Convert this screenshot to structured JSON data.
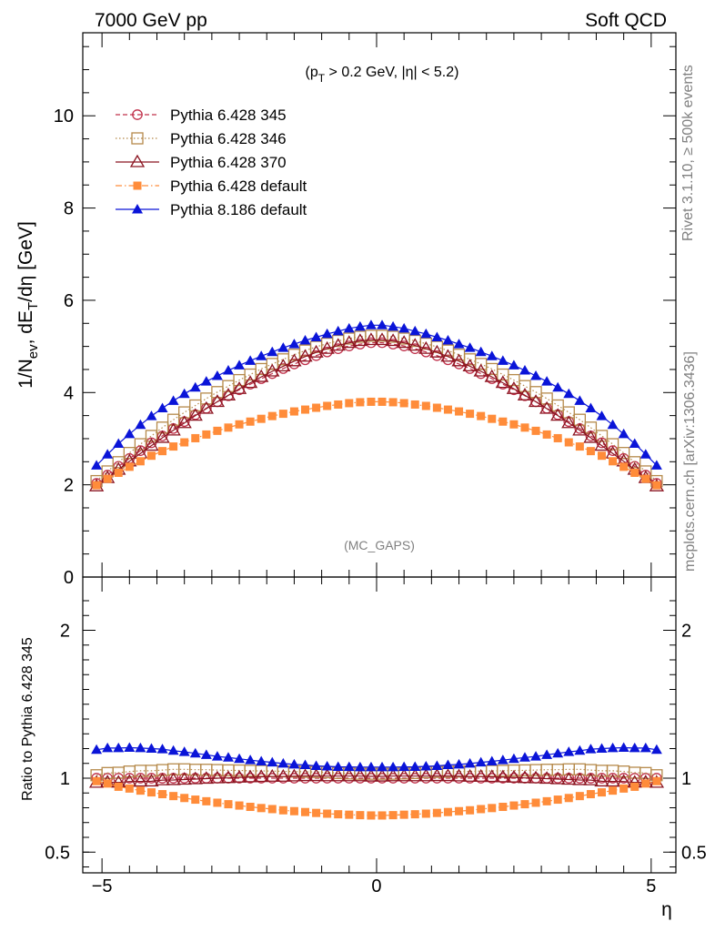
{
  "header": {
    "energy": "7000 GeV pp",
    "process": "Soft QCD"
  },
  "side_labels": {
    "rivet": "Rivet 3.1.10, ≥ 500k events",
    "source": "mcplots.cern.ch [arXiv:1306.3436]"
  },
  "chart_data": [
    {
      "type": "scatter",
      "title": "",
      "cut_label": "(p_T > 0.2 GeV, |η| < 5.2)",
      "watermark": "(MC_GAPS)",
      "ylabel": "1/N_ev, dE_T/dη [GeV]",
      "xlabel": "η",
      "xlim": [
        -5.35,
        5.45
      ],
      "ylim": [
        0,
        11.8
      ],
      "yticks": [
        0,
        2,
        4,
        6,
        8,
        10
      ],
      "ytick_labels": [
        "0",
        "2",
        "4",
        "6",
        "8",
        "10"
      ],
      "legend_position": "top-left",
      "x": [
        -5.1,
        -4.9,
        -4.7,
        -4.5,
        -4.3,
        -4.1,
        -3.9,
        -3.7,
        -3.5,
        -3.3,
        -3.1,
        -2.9,
        -2.7,
        -2.5,
        -2.3,
        -2.1,
        -1.9,
        -1.7,
        -1.5,
        -1.3,
        -1.1,
        -0.9,
        -0.7,
        -0.5,
        -0.3,
        -0.1,
        0.1,
        0.3,
        0.5,
        0.7,
        0.9,
        1.1,
        1.3,
        1.5,
        1.7,
        1.9,
        2.1,
        2.3,
        2.5,
        2.7,
        2.9,
        3.1,
        3.3,
        3.5,
        3.7,
        3.9,
        4.1,
        4.3,
        4.5,
        4.7,
        4.9,
        5.1
      ],
      "series": [
        {
          "name": "Pythia 6.428 345",
          "color": "#c0304a",
          "marker": "open-circle",
          "line": "dashed",
          "values": [
            2.03,
            2.21,
            2.4,
            2.57,
            2.74,
            2.91,
            3.06,
            3.22,
            3.37,
            3.52,
            3.66,
            3.8,
            3.93,
            4.06,
            4.18,
            4.3,
            4.41,
            4.52,
            4.62,
            4.71,
            4.8,
            4.88,
            4.95,
            5.01,
            5.05,
            5.08,
            5.08,
            5.05,
            5.01,
            4.95,
            4.88,
            4.8,
            4.71,
            4.62,
            4.52,
            4.41,
            4.3,
            4.18,
            4.06,
            3.93,
            3.8,
            3.66,
            3.52,
            3.37,
            3.22,
            3.06,
            2.91,
            2.74,
            2.57,
            2.4,
            2.21,
            2.03
          ]
        },
        {
          "name": "Pythia 6.428 346",
          "color": "#b5894a",
          "marker": "open-square",
          "line": "dotted",
          "values": [
            2.08,
            2.29,
            2.49,
            2.69,
            2.88,
            3.06,
            3.24,
            3.41,
            3.57,
            3.72,
            3.87,
            4.01,
            4.14,
            4.27,
            4.39,
            4.51,
            4.62,
            4.72,
            4.82,
            4.91,
            4.99,
            5.06,
            5.12,
            5.17,
            5.21,
            5.23,
            5.23,
            5.21,
            5.17,
            5.12,
            5.06,
            4.99,
            4.91,
            4.82,
            4.72,
            4.62,
            4.51,
            4.39,
            4.27,
            4.14,
            4.01,
            3.87,
            3.72,
            3.57,
            3.41,
            3.24,
            3.06,
            2.88,
            2.69,
            2.49,
            2.29,
            2.08
          ]
        },
        {
          "name": "Pythia 6.428 370",
          "color": "#8b1420",
          "marker": "open-triangle",
          "line": "solid",
          "values": [
            1.97,
            2.15,
            2.33,
            2.51,
            2.68,
            2.85,
            3.02,
            3.18,
            3.34,
            3.5,
            3.65,
            3.8,
            3.94,
            4.08,
            4.21,
            4.34,
            4.46,
            4.57,
            4.68,
            4.78,
            4.87,
            4.95,
            5.02,
            5.08,
            5.12,
            5.14,
            5.14,
            5.12,
            5.08,
            5.02,
            4.95,
            4.87,
            4.78,
            4.68,
            4.57,
            4.46,
            4.34,
            4.21,
            4.08,
            3.94,
            3.8,
            3.65,
            3.5,
            3.34,
            3.18,
            3.02,
            2.85,
            2.68,
            2.51,
            2.33,
            2.15,
            1.97
          ]
        },
        {
          "name": "Pythia 6.428 default",
          "color": "#ff8c3a",
          "marker": "filled-square",
          "line": "dashdot",
          "values": [
            1.99,
            2.13,
            2.26,
            2.39,
            2.51,
            2.63,
            2.73,
            2.83,
            2.92,
            3.01,
            3.09,
            3.17,
            3.24,
            3.31,
            3.37,
            3.43,
            3.49,
            3.54,
            3.59,
            3.63,
            3.67,
            3.71,
            3.74,
            3.77,
            3.79,
            3.8,
            3.8,
            3.79,
            3.77,
            3.74,
            3.71,
            3.67,
            3.63,
            3.59,
            3.54,
            3.49,
            3.43,
            3.37,
            3.31,
            3.24,
            3.17,
            3.09,
            3.01,
            2.92,
            2.83,
            2.73,
            2.63,
            2.51,
            2.39,
            2.26,
            2.13,
            1.99
          ]
        },
        {
          "name": "Pythia 8.186 default",
          "color": "#0a14d8",
          "marker": "filled-triangle",
          "line": "solid",
          "values": [
            2.42,
            2.66,
            2.89,
            3.1,
            3.3,
            3.49,
            3.66,
            3.82,
            3.97,
            4.11,
            4.24,
            4.36,
            4.48,
            4.59,
            4.69,
            4.79,
            4.88,
            4.97,
            5.05,
            5.13,
            5.2,
            5.27,
            5.33,
            5.39,
            5.43,
            5.46,
            5.46,
            5.43,
            5.39,
            5.33,
            5.27,
            5.2,
            5.13,
            5.05,
            4.97,
            4.88,
            4.79,
            4.69,
            4.59,
            4.48,
            4.36,
            4.24,
            4.11,
            3.97,
            3.82,
            3.66,
            3.49,
            3.3,
            3.1,
            2.89,
            2.66,
            2.42
          ]
        }
      ]
    },
    {
      "type": "scatter",
      "title": "",
      "ylabel": "Ratio to Pythia 6.428 345",
      "xlabel": "η",
      "xlim": [
        -5.35,
        5.45
      ],
      "ylim": [
        0.36,
        2.36
      ],
      "yticks": [
        0.5,
        1,
        2
      ],
      "ytick_labels": [
        "0.5",
        "1",
        "2"
      ],
      "xticks": [
        -5,
        0,
        5
      ],
      "xtick_labels": [
        "−5",
        "0",
        "5"
      ],
      "series": [
        {
          "name": "Pythia 6.428 345",
          "reference": true,
          "values": [
            1,
            1,
            1,
            1,
            1,
            1,
            1,
            1,
            1,
            1,
            1,
            1,
            1,
            1,
            1,
            1,
            1,
            1,
            1,
            1,
            1,
            1,
            1,
            1,
            1,
            1,
            1,
            1,
            1,
            1,
            1,
            1,
            1,
            1,
            1,
            1,
            1,
            1,
            1,
            1,
            1,
            1,
            1,
            1,
            1,
            1,
            1,
            1,
            1,
            1,
            1,
            1
          ]
        },
        {
          "name": "Pythia 6.428 346",
          "values": [
            1.02,
            1.035,
            1.037,
            1.045,
            1.05,
            1.05,
            1.055,
            1.06,
            1.06,
            1.057,
            1.057,
            1.055,
            1.053,
            1.052,
            1.05,
            1.049,
            1.048,
            1.046,
            1.045,
            1.043,
            1.042,
            1.04,
            1.035,
            1.032,
            1.03,
            1.03,
            1.03,
            1.03,
            1.032,
            1.035,
            1.04,
            1.042,
            1.043,
            1.045,
            1.046,
            1.048,
            1.049,
            1.05,
            1.052,
            1.053,
            1.055,
            1.057,
            1.057,
            1.06,
            1.06,
            1.055,
            1.05,
            1.05,
            1.045,
            1.037,
            1.035,
            1.02
          ]
        },
        {
          "name": "Pythia 6.428 370",
          "values": [
            0.97,
            0.973,
            0.971,
            0.977,
            0.978,
            0.979,
            0.987,
            0.988,
            0.991,
            0.994,
            0.997,
            1.0,
            1.002,
            1.005,
            1.007,
            1.009,
            1.011,
            1.011,
            1.013,
            1.015,
            1.015,
            1.014,
            1.014,
            1.014,
            1.014,
            1.012,
            1.012,
            1.014,
            1.014,
            1.014,
            1.014,
            1.015,
            1.015,
            1.013,
            1.011,
            1.011,
            1.009,
            1.007,
            1.005,
            1.002,
            1.0,
            0.997,
            0.994,
            0.991,
            0.988,
            0.987,
            0.979,
            0.978,
            0.977,
            0.971,
            0.973,
            0.97
          ]
        },
        {
          "name": "Pythia 6.428 default",
          "values": [
            0.98,
            0.964,
            0.942,
            0.93,
            0.916,
            0.904,
            0.892,
            0.879,
            0.866,
            0.855,
            0.844,
            0.834,
            0.824,
            0.815,
            0.806,
            0.798,
            0.791,
            0.783,
            0.777,
            0.771,
            0.765,
            0.76,
            0.756,
            0.753,
            0.75,
            0.748,
            0.748,
            0.75,
            0.753,
            0.756,
            0.76,
            0.765,
            0.771,
            0.777,
            0.783,
            0.791,
            0.798,
            0.806,
            0.815,
            0.824,
            0.834,
            0.844,
            0.855,
            0.866,
            0.879,
            0.892,
            0.904,
            0.916,
            0.93,
            0.942,
            0.964,
            0.98
          ]
        },
        {
          "name": "Pythia 8.186 default",
          "values": [
            1.192,
            1.204,
            1.204,
            1.206,
            1.204,
            1.2,
            1.196,
            1.186,
            1.178,
            1.168,
            1.158,
            1.147,
            1.14,
            1.131,
            1.122,
            1.114,
            1.107,
            1.099,
            1.093,
            1.089,
            1.083,
            1.08,
            1.077,
            1.076,
            1.075,
            1.075,
            1.075,
            1.075,
            1.076,
            1.077,
            1.08,
            1.083,
            1.089,
            1.093,
            1.099,
            1.107,
            1.114,
            1.122,
            1.131,
            1.14,
            1.147,
            1.158,
            1.168,
            1.178,
            1.186,
            1.196,
            1.2,
            1.204,
            1.206,
            1.204,
            1.204,
            1.192
          ]
        }
      ]
    }
  ]
}
